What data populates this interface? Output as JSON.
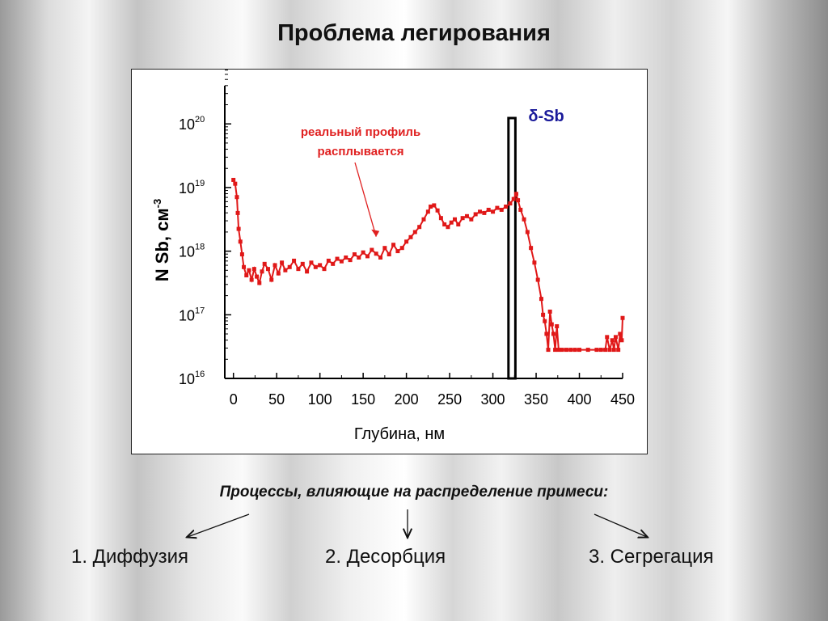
{
  "title": "Проблема легирования",
  "chart_data": {
    "type": "scatter",
    "xlabel": "Глубина, нм",
    "ylabel": "N Sb, см",
    "ylabel_sup": "-3",
    "y_scale": "log",
    "xlim": [
      -10,
      450
    ],
    "ylim_exp": [
      16,
      20.6
    ],
    "x_ticks": [
      0,
      50,
      100,
      150,
      200,
      250,
      300,
      350,
      400,
      450
    ],
    "y_ticks": [
      {
        "base": "10",
        "exp": "16",
        "value_exp": 16
      },
      {
        "base": "10",
        "exp": "17",
        "value_exp": 17
      },
      {
        "base": "10",
        "exp": "18",
        "value_exp": 18
      },
      {
        "base": "10",
        "exp": "19",
        "value_exp": 19
      },
      {
        "base": "10",
        "exp": "20",
        "value_exp": 20
      }
    ],
    "series_color": "#e01818",
    "points": [
      [
        0,
        19.12
      ],
      [
        2,
        19.06
      ],
      [
        4,
        18.85
      ],
      [
        5,
        18.6
      ],
      [
        6,
        18.35
      ],
      [
        8,
        18.15
      ],
      [
        10,
        17.95
      ],
      [
        12,
        17.75
      ],
      [
        15,
        17.62
      ],
      [
        18,
        17.7
      ],
      [
        21,
        17.55
      ],
      [
        24,
        17.72
      ],
      [
        27,
        17.6
      ],
      [
        30,
        17.5
      ],
      [
        33,
        17.68
      ],
      [
        36,
        17.8
      ],
      [
        40,
        17.72
      ],
      [
        44,
        17.55
      ],
      [
        48,
        17.78
      ],
      [
        52,
        17.65
      ],
      [
        56,
        17.82
      ],
      [
        60,
        17.7
      ],
      [
        65,
        17.75
      ],
      [
        70,
        17.85
      ],
      [
        75,
        17.72
      ],
      [
        80,
        17.8
      ],
      [
        85,
        17.68
      ],
      [
        90,
        17.82
      ],
      [
        95,
        17.75
      ],
      [
        100,
        17.78
      ],
      [
        105,
        17.72
      ],
      [
        110,
        17.85
      ],
      [
        115,
        17.8
      ],
      [
        120,
        17.88
      ],
      [
        125,
        17.84
      ],
      [
        130,
        17.9
      ],
      [
        135,
        17.86
      ],
      [
        140,
        17.95
      ],
      [
        145,
        17.9
      ],
      [
        150,
        17.98
      ],
      [
        155,
        17.92
      ],
      [
        160,
        18.02
      ],
      [
        165,
        17.96
      ],
      [
        170,
        17.9
      ],
      [
        175,
        18.05
      ],
      [
        180,
        17.95
      ],
      [
        185,
        18.1
      ],
      [
        190,
        18.0
      ],
      [
        195,
        18.05
      ],
      [
        200,
        18.15
      ],
      [
        205,
        18.22
      ],
      [
        210,
        18.3
      ],
      [
        215,
        18.38
      ],
      [
        220,
        18.5
      ],
      [
        225,
        18.62
      ],
      [
        228,
        18.7
      ],
      [
        232,
        18.72
      ],
      [
        236,
        18.64
      ],
      [
        240,
        18.52
      ],
      [
        244,
        18.42
      ],
      [
        248,
        18.38
      ],
      [
        252,
        18.45
      ],
      [
        256,
        18.5
      ],
      [
        260,
        18.42
      ],
      [
        265,
        18.52
      ],
      [
        270,
        18.55
      ],
      [
        275,
        18.5
      ],
      [
        280,
        18.58
      ],
      [
        285,
        18.62
      ],
      [
        290,
        18.6
      ],
      [
        295,
        18.65
      ],
      [
        300,
        18.62
      ],
      [
        305,
        18.68
      ],
      [
        310,
        18.65
      ],
      [
        315,
        18.7
      ],
      [
        320,
        18.75
      ],
      [
        324,
        18.82
      ],
      [
        327,
        18.9
      ],
      [
        329,
        18.8
      ],
      [
        332,
        18.65
      ],
      [
        336,
        18.5
      ],
      [
        340,
        18.3
      ],
      [
        344,
        18.05
      ],
      [
        348,
        17.82
      ],
      [
        352,
        17.55
      ],
      [
        356,
        17.25
      ],
      [
        358,
        17.0
      ],
      [
        360,
        16.9
      ],
      [
        362,
        16.7
      ],
      [
        364,
        16.45
      ],
      [
        366,
        17.05
      ],
      [
        368,
        16.85
      ],
      [
        370,
        16.7
      ],
      [
        372,
        16.45
      ],
      [
        374,
        16.82
      ],
      [
        376,
        16.45
      ],
      [
        380,
        16.45
      ],
      [
        385,
        16.45
      ],
      [
        390,
        16.45
      ],
      [
        395,
        16.45
      ],
      [
        400,
        16.45
      ],
      [
        410,
        16.45
      ],
      [
        420,
        16.45
      ],
      [
        425,
        16.45
      ],
      [
        430,
        16.45
      ],
      [
        432,
        16.65
      ],
      [
        435,
        16.45
      ],
      [
        438,
        16.6
      ],
      [
        440,
        16.45
      ],
      [
        442,
        16.65
      ],
      [
        445,
        16.45
      ],
      [
        447,
        16.7
      ],
      [
        449,
        16.6
      ],
      [
        450,
        16.95
      ]
    ],
    "delta_layer": {
      "label": "δ-Sb",
      "x_start": 318,
      "x_end": 326
    },
    "annotation": {
      "line1": "реальный профиль",
      "line2": "расплывается",
      "arrow_to": [
        165,
        18.1
      ]
    }
  },
  "processes_heading": "Процессы, влияющие на распределение примеси:",
  "processes": [
    "1. Диффузия",
    "2. Десорбция",
    "3. Сегрегация"
  ]
}
